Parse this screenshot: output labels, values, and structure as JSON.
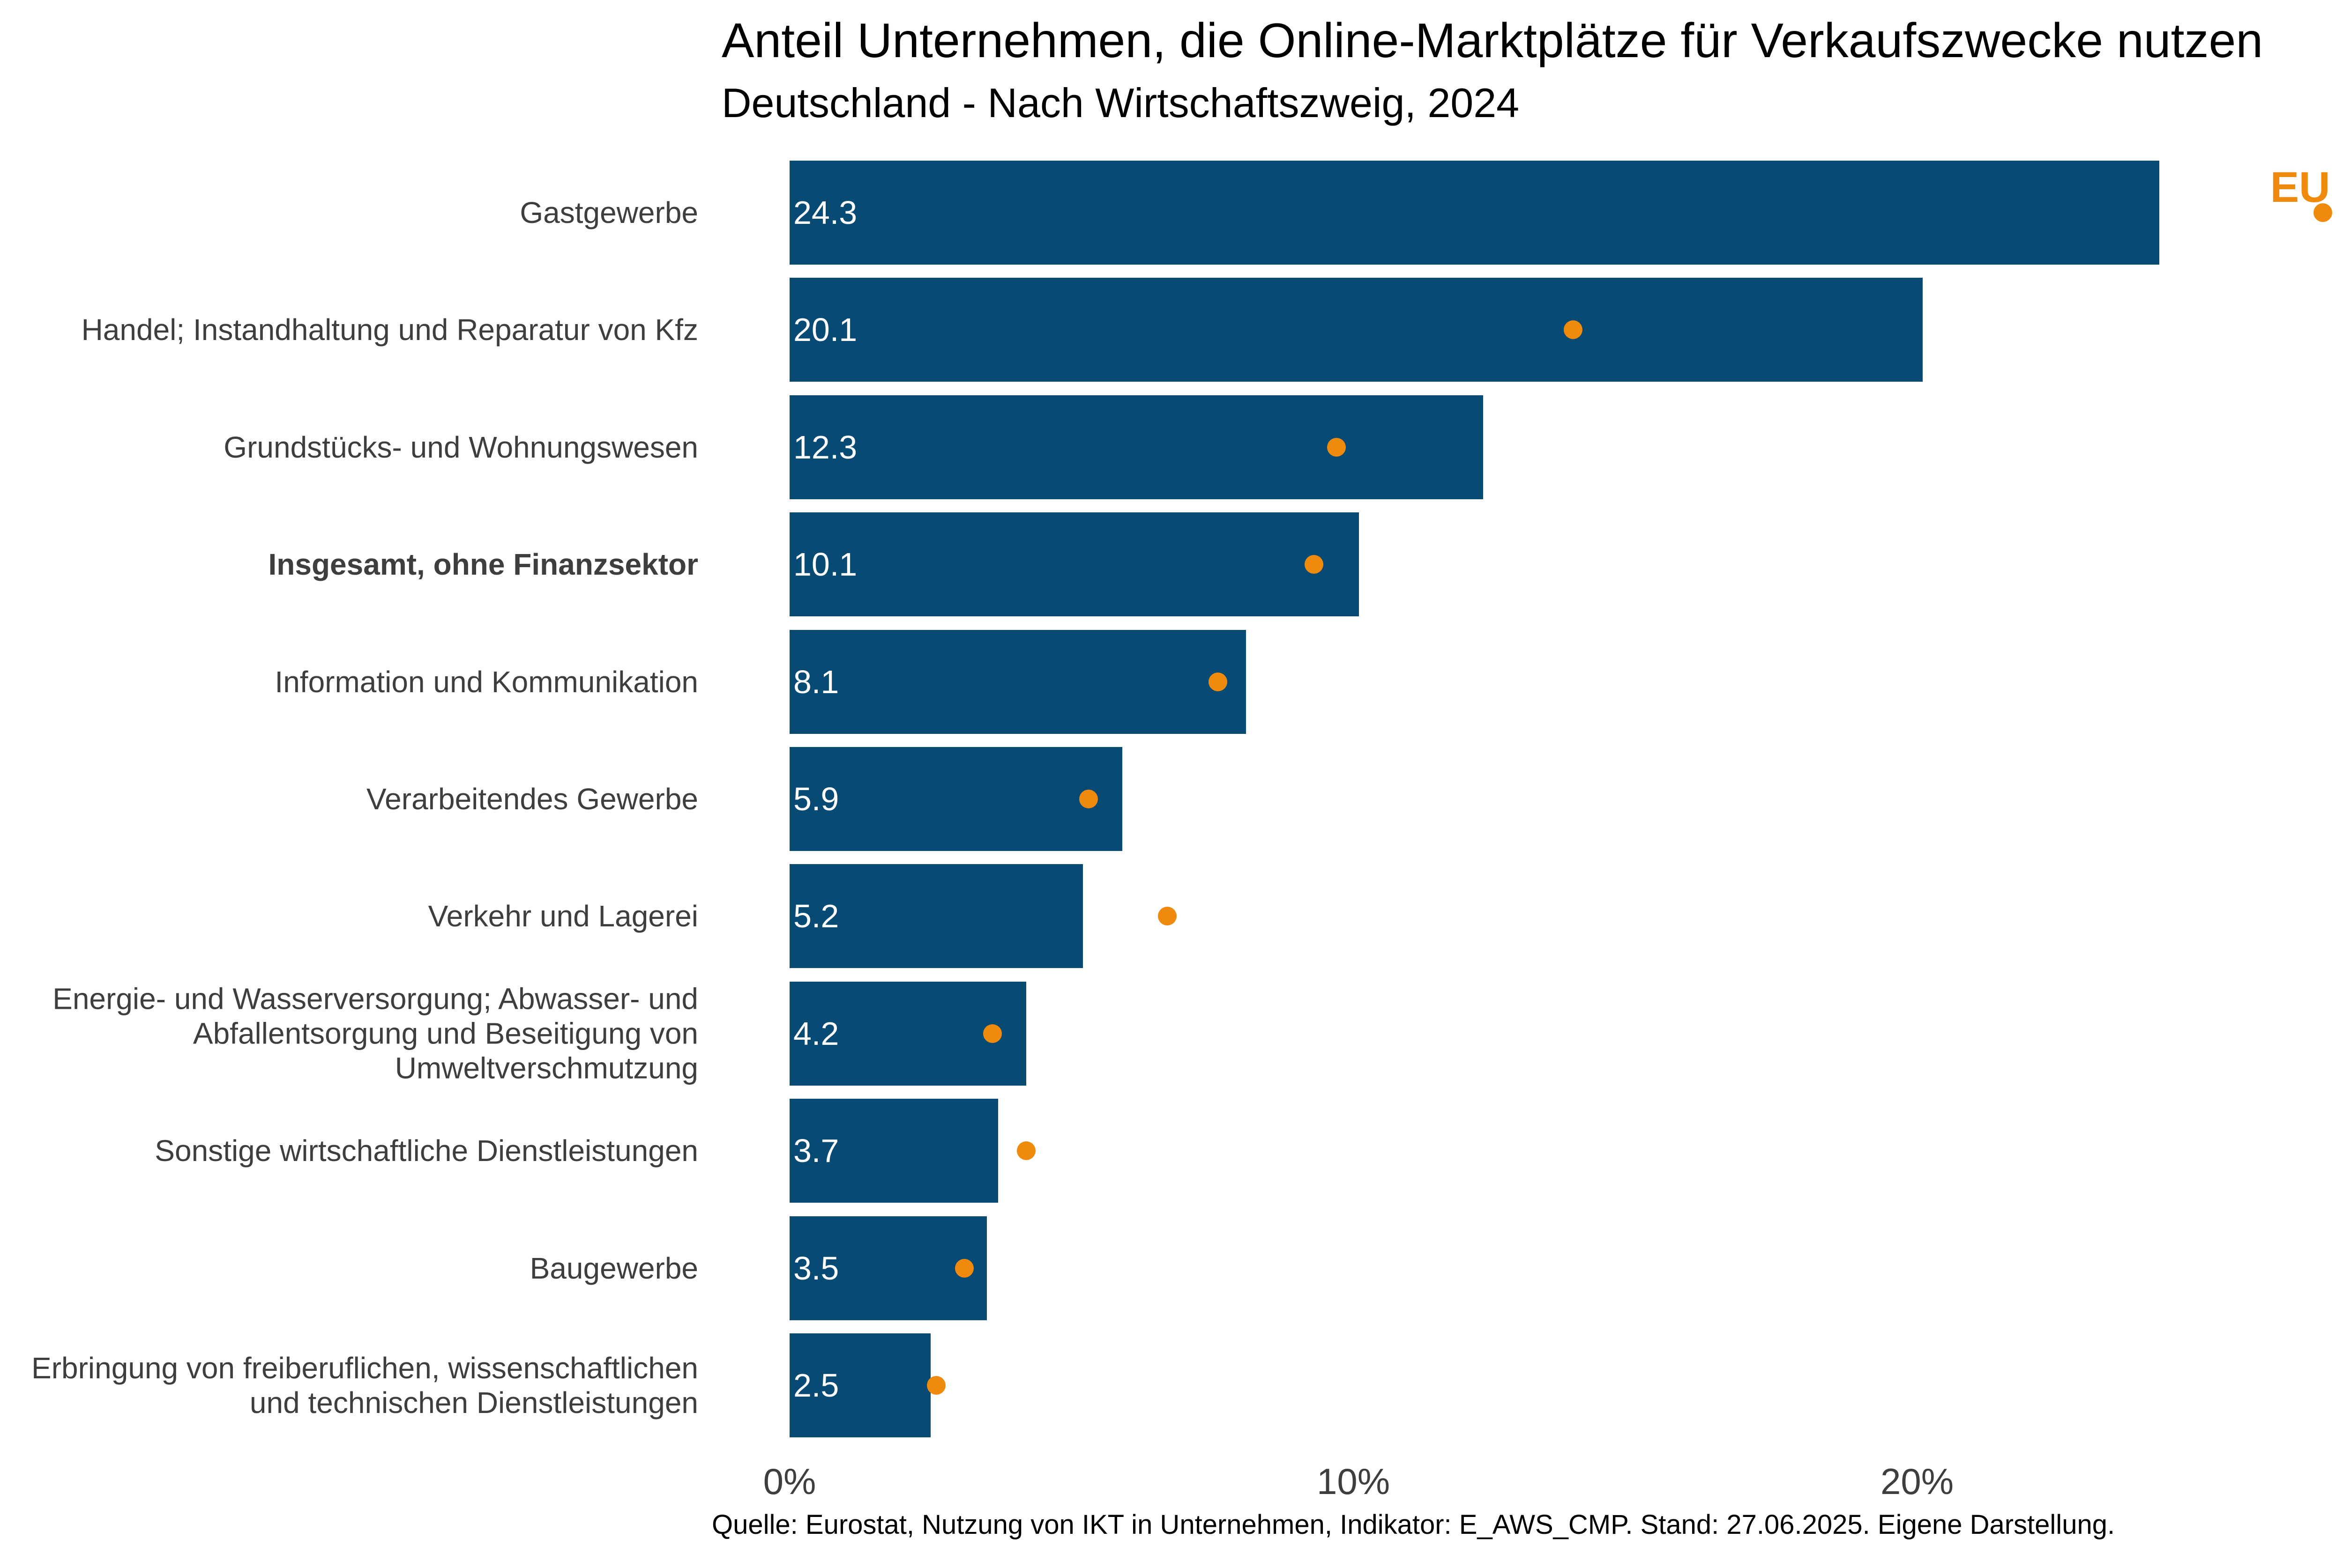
{
  "source": "Quelle: Eurostat, Nutzung von IKT in Unternehmen, Indikator: E_AWS_CMP. Stand: 27.06.2025. Eigene Darstellung.",
  "colors": {
    "bar": "#074B74",
    "eu_dot": "#EF8A0D",
    "category_label": "#3E3E3E",
    "axis_label": "#3E3E3E",
    "title": "#000000",
    "value_label": "#ffffff",
    "background": "#ffffff"
  },
  "chart_data": {
    "type": "bar",
    "orientation": "horizontal",
    "unit": "%",
    "title": "Anteil Unternehmen, die Online-Marktplätze für Verkaufszwecke nutzen",
    "subtitle": "Deutschland - Nach Wirtschaftszweig, 2024",
    "grid": false,
    "legend_position": "top-right",
    "categories": [
      "Gastgewerbe",
      "Handel; Instandhaltung und Reparatur von Kfz",
      "Grundstücks- und Wohnungswesen",
      "Insgesamt, ohne Finanzsektor",
      "Information und Kommunikation",
      "Verarbeitendes Gewerbe",
      "Verkehr und Lagerei",
      "Energie- und Wasserversorgung; Abwasser- und Abfallentsorgung und Beseitigung von Umweltverschmutzung",
      "Sonstige wirtschaftliche Dienstleistungen",
      "Baugewerbe",
      "Erbringung von freiberuflichen, wissenschaftlichen und technischen Dienstleistungen"
    ],
    "emphasized_row_index": 3,
    "series": [
      {
        "name": "Deutschland",
        "style": "bar",
        "values": [
          24.3,
          20.1,
          12.3,
          10.1,
          8.1,
          5.9,
          5.2,
          4.2,
          3.7,
          3.5,
          2.5
        ]
      },
      {
        "name": "EU Ø",
        "style": "dot",
        "values": [
          27.2,
          13.9,
          9.7,
          9.3,
          7.6,
          5.3,
          6.7,
          3.6,
          4.2,
          3.1,
          2.6
        ]
      }
    ],
    "value_labels_shown_for": "Deutschland",
    "x_axis": {
      "range": [
        0,
        28.9
      ],
      "ticks": [
        {
          "value": 0,
          "label": "0%"
        },
        {
          "value": 10,
          "label": "10%"
        },
        {
          "value": 20,
          "label": "20%"
        }
      ]
    }
  }
}
